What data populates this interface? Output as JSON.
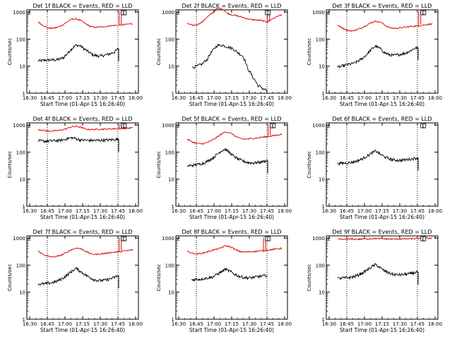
{
  "chart_data": [
    {
      "type": "line",
      "detector": "1f",
      "title": "Det 1f BLACK = Events, RED = LLD",
      "xlabel": "Start Time (01-Apr-15 16:26:40)",
      "ylabel": "Counts/sec",
      "x_ticks": [
        "16:30",
        "16:45",
        "17:00",
        "17:15",
        "17:30",
        "17:45",
        "18:00"
      ],
      "y_ticks": [
        "1",
        "10",
        "100",
        "1000"
      ],
      "ylim": [
        1,
        1200
      ],
      "series": [
        {
          "name": "Events",
          "color": "#000000",
          "values": [
            16,
            16,
            17,
            17,
            17,
            18,
            21,
            30,
            45,
            60,
            55,
            42,
            33,
            26,
            24,
            24,
            26,
            29,
            33,
            45
          ],
          "break_at": 19
        },
        {
          "name": "LLD",
          "color": "#dd0000",
          "values": [
            430,
            320,
            260,
            250,
            270,
            320,
            420,
            540,
            560,
            480,
            360,
            290,
            270,
            280,
            290,
            310,
            320,
            330,
            340,
            360,
            380
          ],
          "spike_at": 17
        }
      ],
      "markers": [
        {
          "label": "E",
          "x_index": 17
        }
      ]
    },
    {
      "type": "line",
      "detector": "2f",
      "title": "Det 2f BLACK = Events, RED = LLD",
      "xlabel": "Start Time (01-Apr-15 16:26:40)",
      "ylabel": "Counts/sec",
      "x_ticks": [
        "16:30",
        "16:45",
        "17:00",
        "17:15",
        "17:30",
        "17:45",
        "18:00"
      ],
      "y_ticks": [
        "1",
        "10",
        "100",
        "1000"
      ],
      "ylim": [
        1,
        1200
      ],
      "series": [
        {
          "name": "Events",
          "color": "#000000",
          "values": [
            null,
            9,
            10,
            12,
            18,
            36,
            58,
            60,
            52,
            45,
            32,
            24,
            8,
            4,
            2,
            1.5,
            1.2
          ],
          "break_at": null
        },
        {
          "name": "LLD",
          "color": "#dd0000",
          "values": [
            380,
            320,
            340,
            420,
            650,
            900,
            1350,
            1300,
            900,
            780,
            720,
            640,
            560,
            520,
            500,
            480,
            420,
            560,
            700,
            820
          ],
          "spike_at": 16
        }
      ],
      "markers": [
        {
          "label": "E",
          "x_index": 16
        }
      ]
    },
    {
      "type": "line",
      "detector": "3f",
      "title": "Det 3f BLACK = Events, RED = LLD",
      "xlabel": "Start Time (01-Apr-15 16:26:40)",
      "ylabel": "Counts/sec",
      "x_ticks": [
        "16:30",
        "16:45",
        "17:00",
        "17:15",
        "17:30",
        "17:45",
        "18:00"
      ],
      "y_ticks": [
        "1",
        "10",
        "100",
        "1000"
      ],
      "ylim": [
        1,
        1200
      ],
      "series": [
        {
          "name": "Events",
          "color": "#000000",
          "values": [
            9,
            10,
            11,
            12,
            13,
            16,
            20,
            28,
            42,
            55,
            45,
            32,
            27,
            25,
            26,
            28,
            30,
            36,
            44,
            50
          ],
          "break_at": 19
        },
        {
          "name": "LLD",
          "color": "#dd0000",
          "values": [
            330,
            260,
            210,
            200,
            220,
            260,
            320,
            400,
            460,
            420,
            320,
            260,
            250,
            260,
            270,
            290,
            300,
            310,
            330,
            350,
            370
          ],
          "spike_at": 17
        }
      ],
      "markers": [
        {
          "label": "E",
          "x_index": 17
        }
      ]
    },
    {
      "type": "line",
      "detector": "4f",
      "title": "Det 4f BLACK = Events, RED = LLD",
      "xlabel": "Start Time (01-Apr-15 16:26:40)",
      "ylabel": "Counts/sec",
      "x_ticks": [
        "16:30",
        "16:45",
        "17:00",
        "17:15",
        "17:30",
        "17:45",
        "18:00"
      ],
      "y_ticks": [
        "1",
        "10",
        "100",
        "1000"
      ],
      "ylim": [
        1,
        1200
      ],
      "series": [
        {
          "name": "Events",
          "color": "#000000",
          "values": [
            260,
            255,
            255,
            260,
            265,
            270,
            285,
            320,
            340,
            310,
            280,
            275,
            270,
            270,
            270,
            275,
            280,
            285,
            290,
            300
          ],
          "break_at": 19
        },
        {
          "name": "LLD",
          "color": "#dd0000",
          "values": [
            700,
            640,
            600,
            600,
            620,
            660,
            740,
            860,
            900,
            820,
            700,
            680,
            690,
            700,
            710,
            720,
            730,
            740,
            750,
            770,
            800
          ],
          "spike_at": 17
        }
      ],
      "markers": [
        {
          "label": "E",
          "x_index": 17
        }
      ]
    },
    {
      "type": "line",
      "detector": "5f",
      "title": "Det 5f BLACK = Events, RED = LLD",
      "xlabel": "Start Time (01-Apr-15 16:26:40)",
      "ylabel": "Counts/sec",
      "x_ticks": [
        "16:30",
        "16:45",
        "17:00",
        "17:15",
        "17:30",
        "17:45",
        "18:00"
      ],
      "y_ticks": [
        "1",
        "10",
        "100",
        "1000"
      ],
      "ylim": [
        1,
        1200
      ],
      "series": [
        {
          "name": "Events",
          "color": "#000000",
          "values": [
            31,
            32,
            34,
            36,
            40,
            48,
            60,
            80,
            110,
            130,
            95,
            70,
            55,
            48,
            42,
            40,
            40,
            42,
            45,
            50
          ],
          "break_at": 19
        },
        {
          "name": "LLD",
          "color": "#dd0000",
          "values": [
            300,
            240,
            210,
            200,
            220,
            260,
            330,
            440,
            560,
            520,
            400,
            320,
            300,
            310,
            320,
            340,
            360,
            380,
            400,
            430,
            460
          ],
          "spike_at": 17
        }
      ],
      "markers": [
        {
          "label": "E",
          "x_index": 17
        }
      ]
    },
    {
      "type": "line",
      "detector": "6f",
      "title": "Det 6f BLACK = Events, RED = LLD",
      "xlabel": "Start Time (01-Apr-15 16:26:40)",
      "ylabel": "Counts/sec",
      "x_ticks": [
        "16:30",
        "16:45",
        "17:00",
        "17:15",
        "17:30",
        "17:45",
        "18:00"
      ],
      "y_ticks": [
        "1",
        "10",
        "100",
        "1000"
      ],
      "ylim": [
        1,
        1200
      ],
      "series": [
        {
          "name": "Events",
          "color": "#000000",
          "values": [
            38,
            39,
            40,
            41,
            44,
            50,
            58,
            72,
            90,
            110,
            85,
            68,
            58,
            52,
            50,
            50,
            52,
            55,
            58,
            62
          ],
          "break_at": 19
        },
        {
          "name": "LLD",
          "color": "#dd0000",
          "values": [],
          "spike_at": null
        }
      ],
      "markers": [
        {
          "label": "E",
          "x_index": 17
        }
      ]
    },
    {
      "type": "line",
      "detector": "7f",
      "title": "Det 7f BLACK = Events, RED = LLD",
      "xlabel": "Start Time (01-Apr-15 16:26:40)",
      "ylabel": "Counts/sec",
      "x_ticks": [
        "16:30",
        "16:45",
        "17:00",
        "17:15",
        "17:30",
        "17:45",
        "18:00"
      ],
      "y_ticks": [
        "1",
        "10",
        "100",
        "1000"
      ],
      "ylim": [
        1,
        1200
      ],
      "series": [
        {
          "name": "Events",
          "color": "#000000",
          "values": [
            20,
            20,
            21,
            22,
            24,
            28,
            34,
            45,
            60,
            75,
            58,
            45,
            36,
            30,
            27,
            27,
            28,
            31,
            35,
            42
          ],
          "break_at": 19
        },
        {
          "name": "LLD",
          "color": "#dd0000",
          "values": [
            330,
            250,
            210,
            200,
            210,
            240,
            290,
            370,
            430,
            400,
            320,
            260,
            250,
            260,
            270,
            290,
            300,
            310,
            330,
            350,
            370
          ],
          "spike_at": 17
        }
      ],
      "markers": [
        {
          "label": "E",
          "x_index": 17
        }
      ]
    },
    {
      "type": "line",
      "detector": "8f",
      "title": "Det 8f BLACK = Events, RED = LLD",
      "xlabel": "Start Time (01-Apr-15 16:26:40)",
      "ylabel": "Counts/sec",
      "x_ticks": [
        "16:30",
        "16:45",
        "17:00",
        "17:15",
        "17:30",
        "17:45",
        "18:00"
      ],
      "y_ticks": [
        "1",
        "10",
        "100",
        "1000"
      ],
      "ylim": [
        1,
        1200
      ],
      "series": [
        {
          "name": "Events",
          "color": "#000000",
          "values": [
            null,
            28,
            30,
            30,
            32,
            34,
            36,
            45,
            55,
            70,
            60,
            48,
            40,
            36,
            34,
            34,
            36,
            38,
            40,
            42
          ],
          "break_at": null
        },
        {
          "name": "LLD",
          "color": "#dd0000",
          "values": [
            320,
            280,
            260,
            270,
            300,
            340,
            380,
            420,
            520,
            480,
            380,
            320,
            300,
            310,
            320,
            330,
            340,
            360,
            380,
            400,
            420
          ],
          "spike_at": 16
        }
      ],
      "markers": [
        {
          "label": "E",
          "x_index": 16
        }
      ]
    },
    {
      "type": "line",
      "detector": "9f",
      "title": "Det 9f BLACK = Events, RED = LLD",
      "xlabel": "Start Time (01-Apr-15 16:26:40)",
      "ylabel": "Counts/sec",
      "x_ticks": [
        "16:30",
        "16:45",
        "17:00",
        "17:15",
        "17:30",
        "17:45",
        "18:00"
      ],
      "y_ticks": [
        "1",
        "10",
        "100",
        "1000"
      ],
      "ylim": [
        1,
        1200
      ],
      "series": [
        {
          "name": "Events",
          "color": "#000000",
          "values": [
            32,
            33,
            34,
            35,
            38,
            44,
            52,
            66,
            85,
            105,
            80,
            62,
            52,
            46,
            44,
            44,
            46,
            48,
            52,
            56
          ],
          "break_at": 19
        },
        {
          "name": "LLD",
          "color": "#dd0000",
          "values": [
            900,
            880,
            900,
            920,
            900,
            910,
            930,
            950,
            960,
            950,
            930,
            920,
            910,
            920,
            930,
            940,
            950,
            960,
            970,
            980,
            1000
          ],
          "spike_at": null
        }
      ],
      "markers": [
        {
          "label": "E",
          "x_index": 17
        }
      ]
    }
  ],
  "colors": {
    "events": "#000000",
    "lld": "#dd0000"
  }
}
